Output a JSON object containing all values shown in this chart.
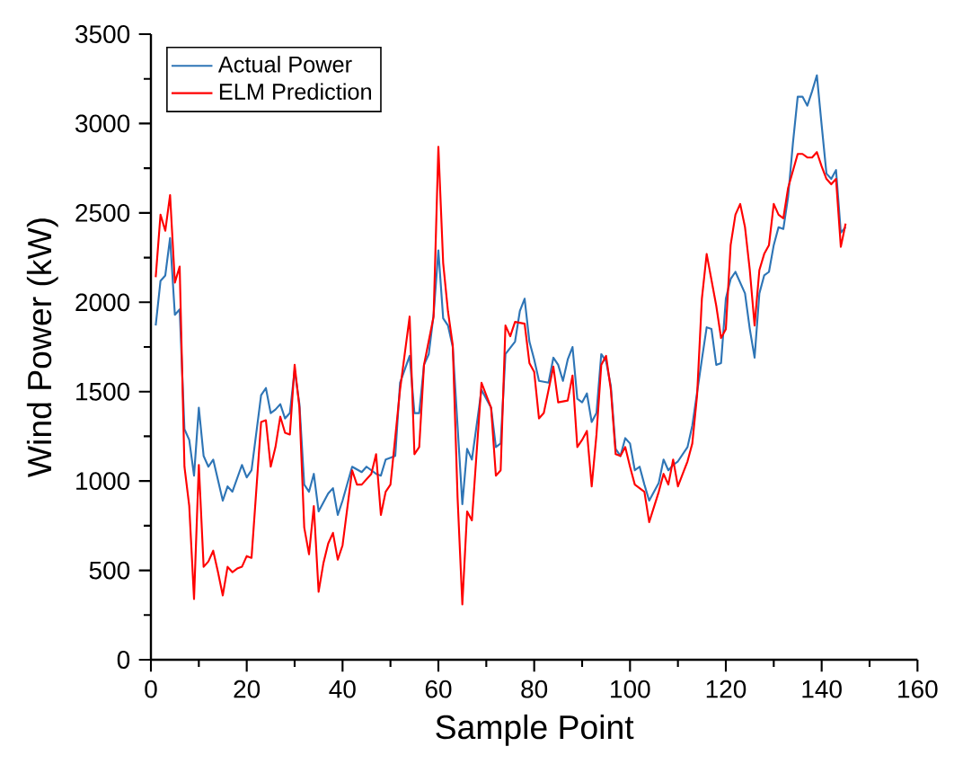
{
  "chart_data": {
    "type": "line",
    "xlabel": "Sample Point",
    "ylabel": "Wind Power (kW)",
    "xlim": [
      0,
      160
    ],
    "xticks": [
      0,
      20,
      40,
      60,
      80,
      100,
      120,
      140,
      160
    ],
    "ylim": [
      0,
      3500
    ],
    "yticks": [
      0,
      500,
      1000,
      1500,
      2000,
      2500,
      3000,
      3500
    ],
    "legend": "top left",
    "marker": "none",
    "line_style": "solid",
    "series": [
      {
        "name": "Actual Power",
        "color": "#2e75b6",
        "x": [
          1,
          2,
          3,
          4,
          5,
          6,
          7,
          8,
          9,
          10,
          11,
          12,
          13,
          15,
          16,
          17,
          19,
          20,
          21,
          23,
          24,
          25,
          26,
          27,
          28,
          29,
          30,
          31,
          32,
          33,
          34,
          35,
          37,
          38,
          39,
          40,
          42,
          44,
          45,
          47,
          48,
          49,
          51,
          52,
          54,
          55,
          56,
          57,
          58,
          59,
          60,
          61,
          62,
          63,
          65,
          66,
          67,
          69,
          71,
          72,
          73,
          74,
          76,
          77,
          78,
          79,
          80,
          81,
          83,
          84,
          85,
          86,
          87,
          88,
          89,
          90,
          91,
          92,
          93,
          94,
          95,
          96,
          97,
          98,
          99,
          100,
          101,
          102,
          103,
          104,
          106,
          107,
          108,
          109,
          110,
          111,
          112,
          113,
          115,
          116,
          117,
          118,
          119,
          120,
          121,
          122,
          124,
          125,
          126,
          127,
          128,
          129,
          130,
          131,
          132,
          133,
          134,
          135,
          136,
          137,
          138,
          139,
          140,
          141,
          142,
          143,
          144,
          145
        ],
        "values": [
          1870,
          2120,
          2150,
          2360,
          1930,
          1960,
          1290,
          1230,
          1030,
          1410,
          1140,
          1080,
          1120,
          890,
          970,
          940,
          1090,
          1020,
          1060,
          1480,
          1520,
          1380,
          1400,
          1430,
          1350,
          1380,
          1620,
          1430,
          980,
          940,
          1040,
          830,
          930,
          960,
          810,
          890,
          1080,
          1050,
          1080,
          1040,
          1030,
          1120,
          1140,
          1550,
          1700,
          1380,
          1380,
          1650,
          1710,
          1930,
          2290,
          1910,
          1870,
          1750,
          870,
          1180,
          1120,
          1510,
          1410,
          1190,
          1210,
          1710,
          1780,
          1950,
          2020,
          1780,
          1680,
          1560,
          1550,
          1690,
          1650,
          1560,
          1680,
          1750,
          1460,
          1440,
          1490,
          1330,
          1380,
          1710,
          1670,
          1530,
          1180,
          1140,
          1240,
          1210,
          1060,
          1080,
          980,
          890,
          990,
          1120,
          1060,
          1090,
          1110,
          1150,
          1190,
          1310,
          1680,
          1860,
          1850,
          1650,
          1660,
          2020,
          2130,
          2170,
          2050,
          1850,
          1690,
          2050,
          2150,
          2170,
          2320,
          2420,
          2410,
          2590,
          2890,
          3150,
          3150,
          3100,
          3180,
          3270,
          2990,
          2720,
          2690,
          2740,
          2390,
          2420
        ]
      },
      {
        "name": "ELM Prediction",
        "color": "#ff0000",
        "x": [
          1,
          2,
          3,
          4,
          5,
          6,
          7,
          8,
          9,
          10,
          11,
          12,
          13,
          14,
          15,
          16,
          17,
          18,
          19,
          20,
          21,
          23,
          24,
          25,
          26,
          27,
          28,
          29,
          30,
          31,
          32,
          33,
          34,
          35,
          36,
          37,
          38,
          39,
          40,
          42,
          43,
          44,
          46,
          47,
          48,
          49,
          50,
          52,
          54,
          55,
          56,
          57,
          59,
          60,
          61,
          62,
          63,
          64,
          65,
          66,
          67,
          69,
          71,
          72,
          73,
          74,
          75,
          76,
          78,
          79,
          80,
          81,
          82,
          84,
          85,
          87,
          88,
          89,
          90,
          91,
          92,
          93,
          94,
          95,
          96,
          97,
          98,
          99,
          100,
          101,
          103,
          104,
          106,
          107,
          108,
          109,
          110,
          111,
          112,
          113,
          114,
          115,
          116,
          118,
          119,
          120,
          121,
          122,
          123,
          124,
          125,
          126,
          127,
          128,
          129,
          130,
          131,
          132,
          133,
          135,
          136,
          137,
          138,
          139,
          140,
          141,
          142,
          143,
          144,
          145
        ],
        "values": [
          2140,
          2490,
          2400,
          2600,
          2110,
          2200,
          1080,
          860,
          340,
          1090,
          520,
          550,
          610,
          490,
          360,
          520,
          490,
          510,
          520,
          580,
          570,
          1330,
          1340,
          1080,
          1190,
          1360,
          1270,
          1260,
          1650,
          1410,
          740,
          590,
          860,
          380,
          540,
          650,
          710,
          560,
          640,
          1060,
          980,
          980,
          1040,
          1150,
          810,
          940,
          980,
          1510,
          1920,
          1150,
          1190,
          1650,
          1920,
          2870,
          2220,
          1950,
          1760,
          910,
          310,
          830,
          780,
          1550,
          1410,
          1030,
          1060,
          1870,
          1810,
          1890,
          1880,
          1660,
          1610,
          1350,
          1380,
          1640,
          1440,
          1450,
          1590,
          1190,
          1230,
          1280,
          970,
          1260,
          1650,
          1700,
          1510,
          1150,
          1140,
          1190,
          1080,
          980,
          940,
          770,
          940,
          1040,
          980,
          1120,
          970,
          1040,
          1110,
          1210,
          1480,
          2020,
          2270,
          1980,
          1800,
          1850,
          2320,
          2490,
          2550,
          2420,
          2180,
          1870,
          2180,
          2270,
          2320,
          2550,
          2490,
          2470,
          2640,
          2830,
          2830,
          2810,
          2810,
          2840,
          2760,
          2690,
          2660,
          2690,
          2310,
          2440
        ]
      }
    ]
  }
}
